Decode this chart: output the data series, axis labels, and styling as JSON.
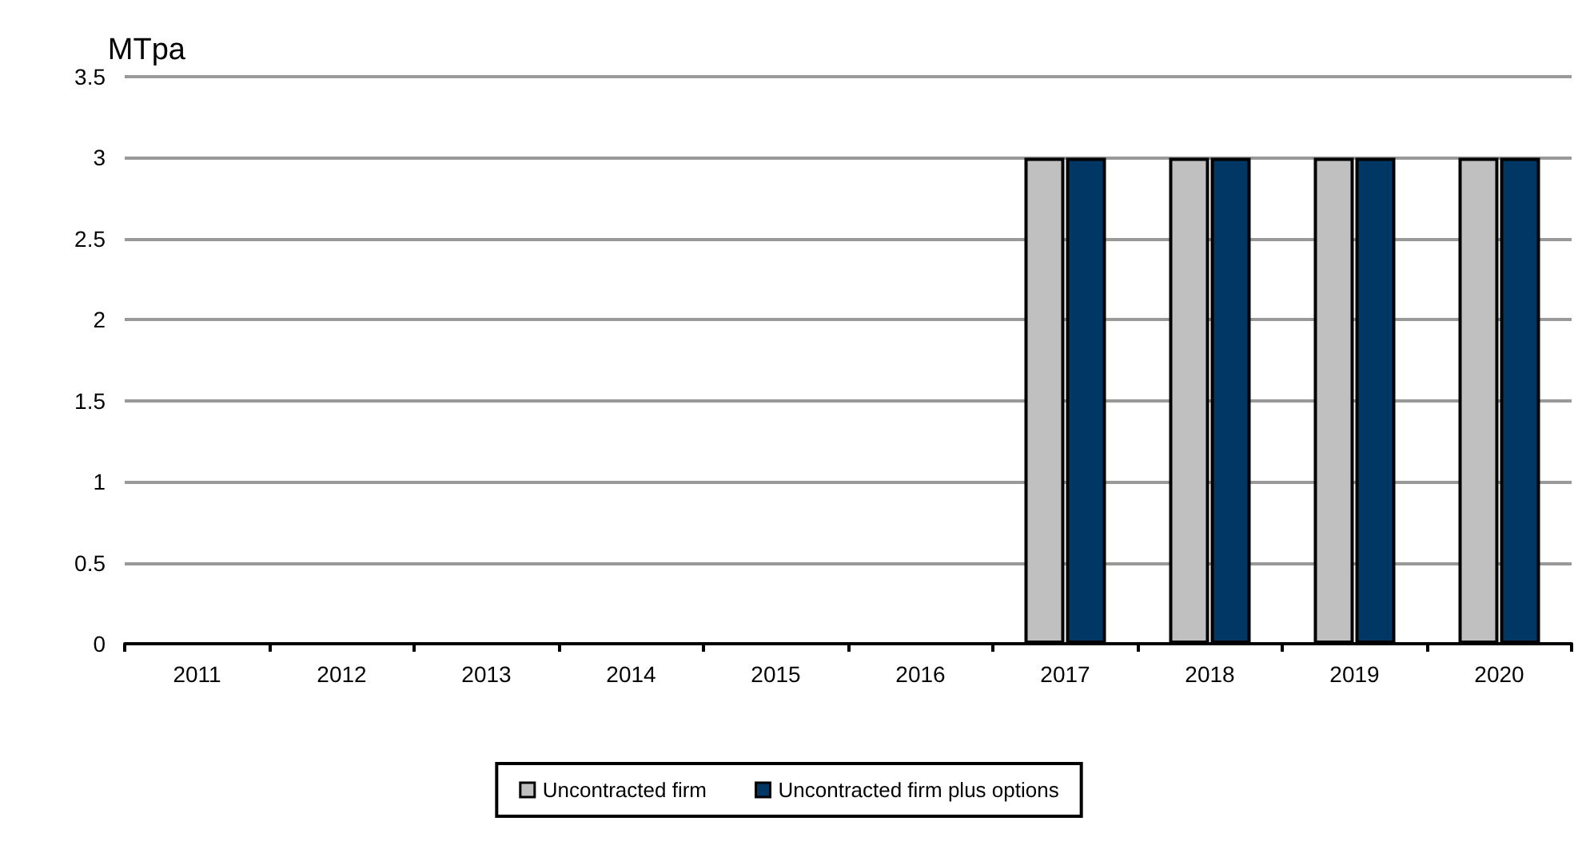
{
  "chart_data": {
    "type": "bar",
    "ylabel": "MTpa",
    "categories": [
      "2011",
      "2012",
      "2013",
      "2014",
      "2015",
      "2016",
      "2017",
      "2018",
      "2019",
      "2020"
    ],
    "series": [
      {
        "name": "Uncontracted firm",
        "color": "#c0c0c0",
        "values": [
          0,
          0,
          0,
          0,
          0,
          0,
          3,
          3,
          3,
          3
        ]
      },
      {
        "name": "Uncontracted firm plus options",
        "color": "#003764",
        "values": [
          0,
          0,
          0,
          0,
          0,
          0,
          3,
          3,
          3,
          3
        ]
      }
    ],
    "ylim": [
      0,
      3.5
    ],
    "yticks": [
      0,
      0.5,
      1,
      1.5,
      2,
      2.5,
      3,
      3.5
    ],
    "grid": "y",
    "legend": "bottom"
  }
}
